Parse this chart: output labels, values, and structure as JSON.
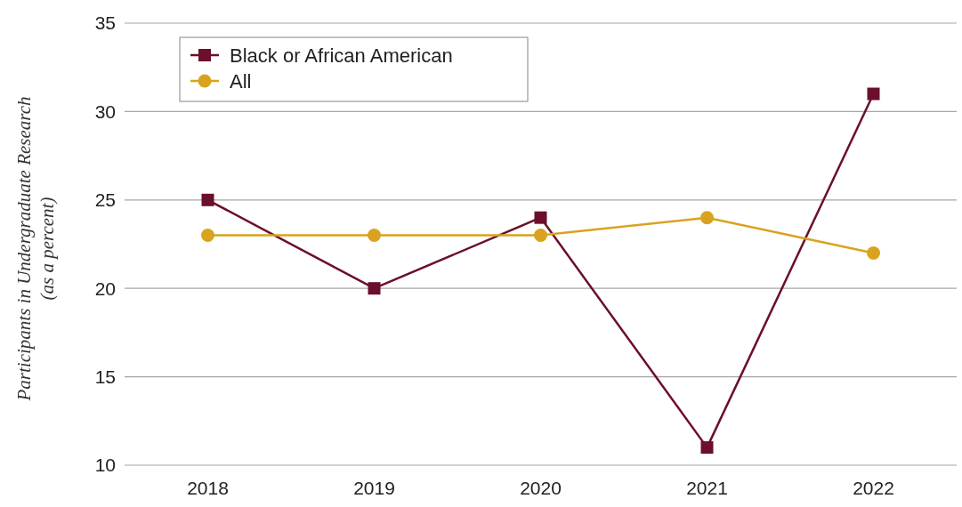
{
  "chart_data": {
    "type": "line",
    "ylabel": "Participants in Undergraduate Research (as a percent)",
    "categories": [
      "2018",
      "2019",
      "2020",
      "2021",
      "2022"
    ],
    "series": [
      {
        "name": "Black or African American",
        "color": "#6b0f2b",
        "marker": "square",
        "values": [
          25,
          20,
          24,
          11,
          31
        ]
      },
      {
        "name": "All",
        "color": "#d9a31f",
        "marker": "circle",
        "values": [
          23,
          23,
          23,
          24,
          22
        ]
      }
    ],
    "ylim": [
      10,
      35
    ],
    "yticks": [
      10,
      15,
      20,
      25,
      30,
      35
    ],
    "grid": "y",
    "legend": "top left",
    "line_style": "solid"
  }
}
